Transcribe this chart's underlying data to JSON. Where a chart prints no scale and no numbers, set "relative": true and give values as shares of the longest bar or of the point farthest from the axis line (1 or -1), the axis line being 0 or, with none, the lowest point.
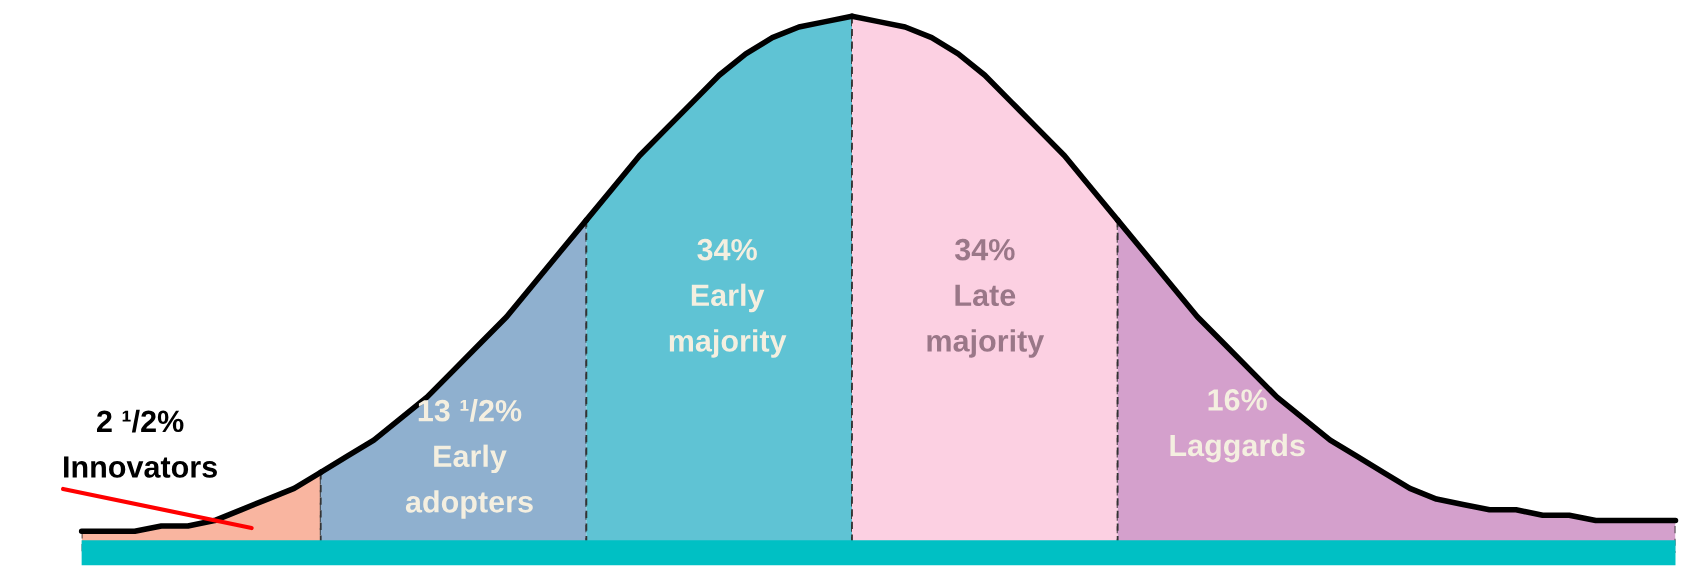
{
  "chart_data": {
    "type": "area",
    "relative": true,
    "categories": [
      null,
      null,
      null,
      null,
      null,
      null,
      null,
      null,
      null,
      null,
      null,
      null,
      null,
      null,
      null,
      null,
      null,
      null,
      null,
      null,
      null,
      null,
      null,
      null,
      null,
      null,
      null,
      null,
      null,
      null,
      null,
      null,
      null,
      null,
      null,
      null,
      null,
      null,
      null,
      null,
      null,
      null,
      null,
      null,
      null,
      null,
      null,
      null,
      null,
      null,
      null,
      null,
      null,
      null,
      null,
      null,
      null,
      null,
      null,
      null,
      null
    ],
    "series": [
      {
        "name": "Innovators",
        "color": "#f9b5a0",
        "values": [
          0.04,
          0.04,
          0.04,
          0.05,
          0.05,
          0.06,
          0.08,
          0.1,
          0.12,
          0.15,
          null,
          null,
          null,
          null,
          null,
          null,
          null,
          null,
          null,
          null,
          null,
          null,
          null,
          null,
          null,
          null,
          null,
          null,
          null,
          null,
          null,
          null,
          null,
          null,
          null,
          null,
          null,
          null,
          null,
          null,
          null,
          null,
          null,
          null,
          null,
          null,
          null,
          null,
          null,
          null,
          null,
          null,
          null,
          null,
          null,
          null,
          null,
          null,
          null,
          null,
          null
        ]
      },
      {
        "name": "Early adopters",
        "color": "#8fb0cf",
        "values": [
          null,
          null,
          null,
          null,
          null,
          null,
          null,
          null,
          null,
          0.15,
          0.18,
          0.21,
          0.25,
          0.29,
          0.34,
          0.39,
          0.44,
          0.5,
          0.56,
          0.62,
          null,
          null,
          null,
          null,
          null,
          null,
          null,
          null,
          null,
          null,
          null,
          null,
          null,
          null,
          null,
          null,
          null,
          null,
          null,
          null,
          null,
          null,
          null,
          null,
          null,
          null,
          null,
          null,
          null,
          null,
          null,
          null,
          null,
          null,
          null,
          null,
          null,
          null,
          null,
          null,
          null
        ]
      },
      {
        "name": "Early majority",
        "color": "#5fc3d4",
        "values": [
          null,
          null,
          null,
          null,
          null,
          null,
          null,
          null,
          null,
          null,
          null,
          null,
          null,
          null,
          null,
          null,
          null,
          null,
          null,
          0.62,
          0.68,
          0.74,
          0.79,
          0.84,
          0.89,
          0.93,
          0.96,
          0.98,
          0.99,
          1.0,
          null,
          null,
          null,
          null,
          null,
          null,
          null,
          null,
          null,
          null,
          null,
          null,
          null,
          null,
          null,
          null,
          null,
          null,
          null,
          null,
          null,
          null,
          null,
          null,
          null,
          null,
          null,
          null,
          null,
          null,
          null
        ]
      },
      {
        "name": "Late majority",
        "color": "#fcd0e2",
        "values": [
          null,
          null,
          null,
          null,
          null,
          null,
          null,
          null,
          null,
          null,
          null,
          null,
          null,
          null,
          null,
          null,
          null,
          null,
          null,
          null,
          null,
          null,
          null,
          null,
          null,
          null,
          null,
          null,
          null,
          1.0,
          0.99,
          0.98,
          0.96,
          0.93,
          0.89,
          0.84,
          0.79,
          0.74,
          0.68,
          0.62,
          null,
          null,
          null,
          null,
          null,
          null,
          null,
          null,
          null,
          null,
          null,
          null,
          null,
          null,
          null,
          null,
          null,
          null,
          null,
          null,
          null
        ]
      },
      {
        "name": "Laggards",
        "color": "#d4a0cc",
        "values": [
          null,
          null,
          null,
          null,
          null,
          null,
          null,
          null,
          null,
          null,
          null,
          null,
          null,
          null,
          null,
          null,
          null,
          null,
          null,
          null,
          null,
          null,
          null,
          null,
          null,
          null,
          null,
          null,
          null,
          null,
          null,
          null,
          null,
          null,
          null,
          null,
          null,
          null,
          null,
          0.62,
          0.56,
          0.5,
          0.44,
          0.39,
          0.34,
          0.29,
          0.25,
          0.21,
          0.18,
          0.15,
          0.12,
          0.1,
          0.09,
          0.08,
          0.08,
          0.07,
          0.07,
          0.06,
          0.06,
          0.06,
          0.06
        ]
      }
    ],
    "annotations": [
      "2 ¹/2%",
      "13 ¹/2%",
      "34%",
      "34%",
      "16%"
    ]
  }
}
